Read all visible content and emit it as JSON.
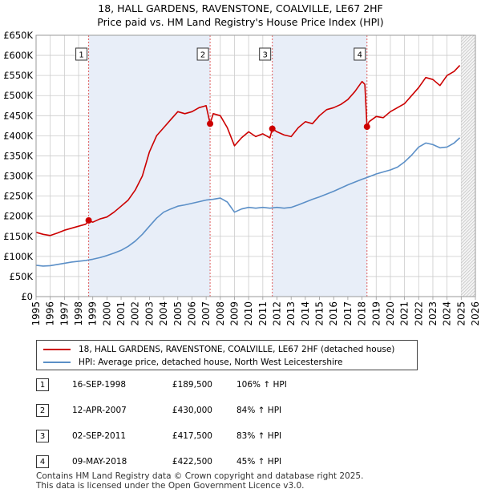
{
  "title_line1": "18, HALL GARDENS, RAVENSTONE, COALVILLE, LE67 2HF",
  "title_line2": "Price paid vs. HM Land Registry's House Price Index (HPI)",
  "colors": {
    "property": "#cc0000",
    "hpi": "#5b8fc7",
    "shade": "#e8eef8",
    "grid": "#cccccc",
    "marker_line": "#e06060"
  },
  "legend": {
    "property": "18, HALL GARDENS, RAVENSTONE, COALVILLE, LE67 2HF (detached house)",
    "hpi": "HPI: Average price, detached house, North West Leicestershire"
  },
  "sales": [
    {
      "num": "1",
      "date": "16-SEP-1998",
      "price": "£189,500",
      "hpi": "106% ↑ HPI"
    },
    {
      "num": "2",
      "date": "12-APR-2007",
      "price": "£430,000",
      "hpi": "84% ↑ HPI"
    },
    {
      "num": "3",
      "date": "02-SEP-2011",
      "price": "£417,500",
      "hpi": "83% ↑ HPI"
    },
    {
      "num": "4",
      "date": "09-MAY-2018",
      "price": "£422,500",
      "hpi": "45% ↑ HPI"
    }
  ],
  "footer": {
    "line1": "Contains HM Land Registry data © Crown copyright and database right 2025.",
    "line2": "This data is licensed under the Open Government Licence v3.0."
  },
  "chart_data": {
    "type": "line",
    "title": "18, HALL GARDENS, RAVENSTONE, COALVILLE, LE67 2HF Price paid vs. HM Land Registry's House Price Index (HPI)",
    "xlim": [
      1995,
      2026
    ],
    "ylim": [
      0,
      650000
    ],
    "xticks": [
      1995,
      1996,
      1997,
      1998,
      1999,
      2000,
      2001,
      2002,
      2003,
      2004,
      2005,
      2006,
      2007,
      2008,
      2009,
      2010,
      2011,
      2012,
      2013,
      2014,
      2015,
      2016,
      2017,
      2018,
      2019,
      2020,
      2021,
      2022,
      2023,
      2024,
      2025,
      2026
    ],
    "yticks": [
      0,
      50000,
      100000,
      150000,
      200000,
      250000,
      300000,
      350000,
      400000,
      450000,
      500000,
      550000,
      600000,
      650000
    ],
    "ytick_labels": [
      "£0",
      "£50K",
      "£100K",
      "£150K",
      "£200K",
      "£250K",
      "£300K",
      "£350K",
      "£400K",
      "£450K",
      "£500K",
      "£550K",
      "£600K",
      "£650K"
    ],
    "future_hatch_from": 2025.0,
    "series": [
      {
        "name": "18, HALL GARDENS, RAVENSTONE, COALVILLE, LE67 2HF (detached house)",
        "x": [
          1995.0,
          1995.5,
          1996.0,
          1996.5,
          1997.0,
          1997.5,
          1998.0,
          1998.5,
          1998.71,
          1999.0,
          1999.5,
          2000.0,
          2000.5,
          2001.0,
          2001.5,
          2002.0,
          2002.5,
          2003.0,
          2003.5,
          2004.0,
          2004.5,
          2005.0,
          2005.5,
          2006.0,
          2006.5,
          2007.0,
          2007.28,
          2007.5,
          2008.0,
          2008.5,
          2009.0,
          2009.5,
          2010.0,
          2010.5,
          2011.0,
          2011.5,
          2011.67,
          2012.0,
          2012.5,
          2013.0,
          2013.5,
          2014.0,
          2014.5,
          2015.0,
          2015.5,
          2016.0,
          2016.5,
          2017.0,
          2017.5,
          2018.0,
          2018.2,
          2018.35,
          2018.5,
          2019.0,
          2019.5,
          2020.0,
          2020.5,
          2021.0,
          2021.5,
          2022.0,
          2022.5,
          2023.0,
          2023.5,
          2024.0,
          2024.5,
          2024.9
        ],
        "y": [
          160000,
          155000,
          152000,
          158000,
          165000,
          170000,
          175000,
          180000,
          189500,
          185000,
          193000,
          198000,
          210000,
          225000,
          240000,
          265000,
          300000,
          360000,
          400000,
          420000,
          440000,
          460000,
          455000,
          460000,
          470000,
          475000,
          430000,
          455000,
          450000,
          420000,
          375000,
          395000,
          410000,
          398000,
          405000,
          395000,
          417500,
          410000,
          402000,
          398000,
          420000,
          435000,
          430000,
          450000,
          465000,
          470000,
          478000,
          490000,
          510000,
          535000,
          528000,
          422500,
          435000,
          448000,
          445000,
          460000,
          470000,
          480000,
          500000,
          520000,
          545000,
          540000,
          525000,
          550000,
          560000,
          575000
        ]
      },
      {
        "name": "HPI: Average price, detached house, North West Leicestershire",
        "x": [
          1995.0,
          1995.5,
          1996.0,
          1996.5,
          1997.0,
          1997.5,
          1998.0,
          1998.5,
          1999.0,
          1999.5,
          2000.0,
          2000.5,
          2001.0,
          2001.5,
          2002.0,
          2002.5,
          2003.0,
          2003.5,
          2004.0,
          2004.5,
          2005.0,
          2005.5,
          2006.0,
          2006.5,
          2007.0,
          2007.5,
          2008.0,
          2008.5,
          2009.0,
          2009.5,
          2010.0,
          2010.5,
          2011.0,
          2011.5,
          2012.0,
          2012.5,
          2013.0,
          2013.5,
          2014.0,
          2014.5,
          2015.0,
          2015.5,
          2016.0,
          2016.5,
          2017.0,
          2017.5,
          2018.0,
          2018.5,
          2019.0,
          2019.5,
          2020.0,
          2020.5,
          2021.0,
          2021.5,
          2022.0,
          2022.5,
          2023.0,
          2023.5,
          2024.0,
          2024.5,
          2024.9
        ],
        "y": [
          78000,
          76000,
          77000,
          80000,
          83000,
          86000,
          88000,
          90000,
          93000,
          97000,
          102000,
          108000,
          115000,
          125000,
          138000,
          155000,
          175000,
          195000,
          210000,
          218000,
          225000,
          228000,
          232000,
          236000,
          240000,
          242000,
          245000,
          235000,
          210000,
          218000,
          222000,
          220000,
          222000,
          220000,
          222000,
          220000,
          222000,
          228000,
          235000,
          242000,
          248000,
          255000,
          262000,
          270000,
          278000,
          285000,
          292000,
          298000,
          305000,
          310000,
          315000,
          322000,
          335000,
          352000,
          372000,
          382000,
          378000,
          370000,
          372000,
          382000,
          395000
        ]
      }
    ],
    "sale_markers": [
      {
        "label": "1",
        "x": 1998.71,
        "y": 189500
      },
      {
        "label": "2",
        "x": 2007.28,
        "y": 430000
      },
      {
        "label": "3",
        "x": 2011.67,
        "y": 417500
      },
      {
        "label": "4",
        "x": 2018.35,
        "y": 422500
      }
    ]
  }
}
